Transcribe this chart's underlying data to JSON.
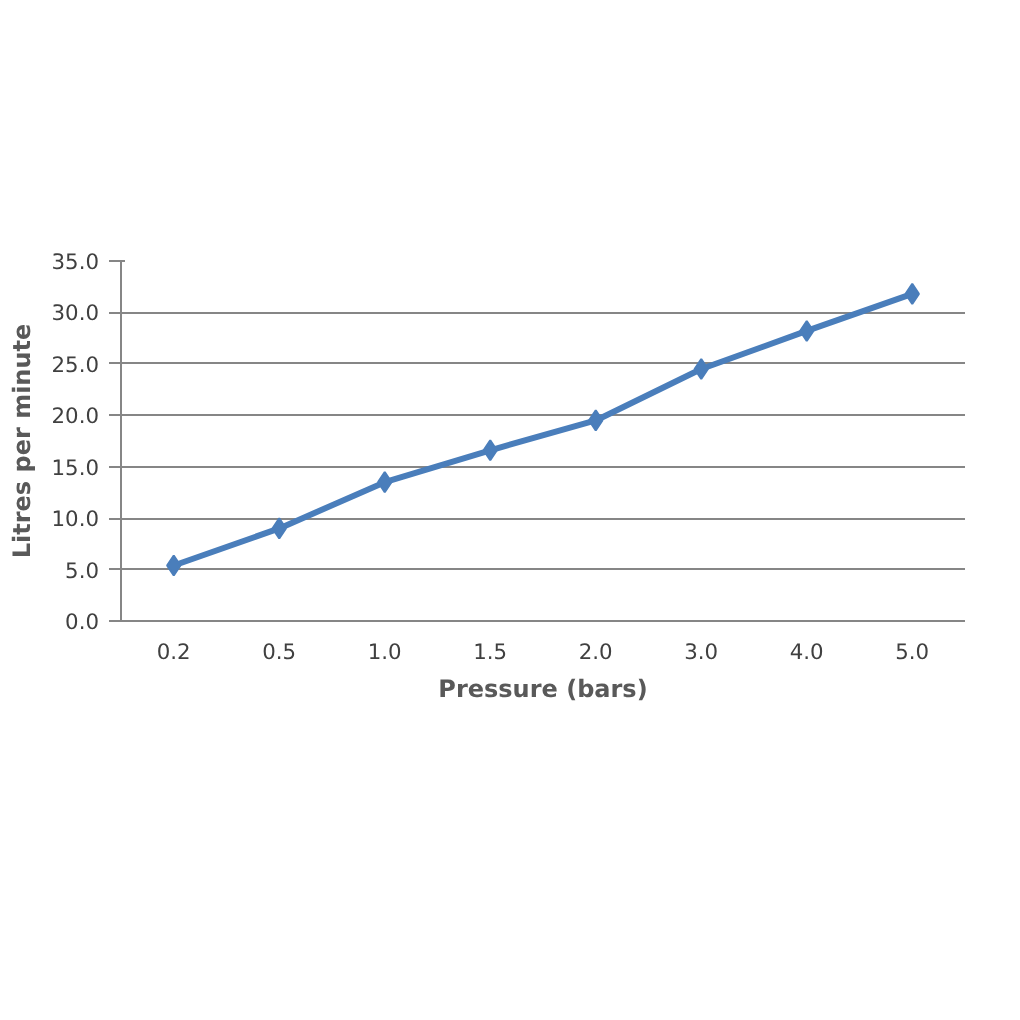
{
  "chart_data": {
    "type": "line",
    "xlabel": "Pressure (bars)",
    "ylabel": "Litres per minute",
    "categories": [
      "0.2",
      "0.5",
      "1.0",
      "1.5",
      "2.0",
      "3.0",
      "4.0",
      "5.0"
    ],
    "series": [
      {
        "color": "#4a7ebb",
        "values": [
          5.4,
          9.0,
          13.5,
          16.6,
          19.5,
          24.5,
          28.2,
          31.8
        ]
      }
    ],
    "ylim": [
      0,
      35
    ],
    "yticks": [
      {
        "value": 0,
        "label": "0.0"
      },
      {
        "value": 5,
        "label": "5.0"
      },
      {
        "value": 10,
        "label": "10.0"
      },
      {
        "value": 15,
        "label": "15.0"
      },
      {
        "value": 20,
        "label": "20.0"
      },
      {
        "value": 25,
        "label": "25.0"
      },
      {
        "value": 30,
        "label": "30.0"
      },
      {
        "value": 35,
        "label": "35.0"
      }
    ],
    "grid": "y",
    "marker": "diamond",
    "line_style": "solid"
  }
}
